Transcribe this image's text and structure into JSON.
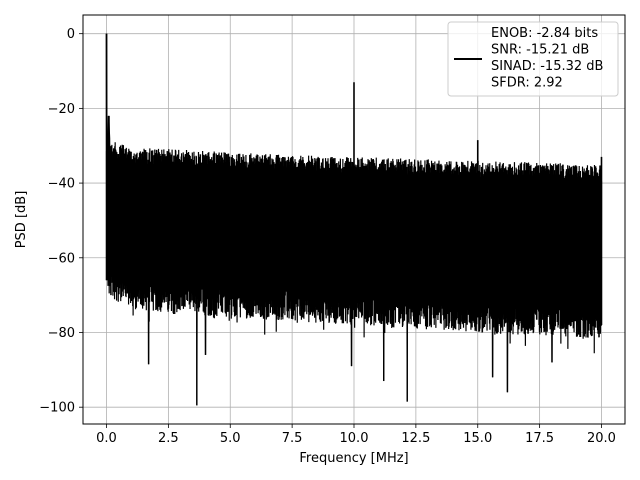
{
  "chart_data": {
    "type": "line",
    "title": "",
    "xlabel": "Frequency [MHz]",
    "ylabel": "PSD [dB]",
    "xlim": [
      -0.95,
      20.95
    ],
    "ylim": [
      -104.5,
      5.0
    ],
    "xticks": [
      0.0,
      2.5,
      5.0,
      7.5,
      10.0,
      12.5,
      15.0,
      17.5,
      20.0
    ],
    "xtick_labels": [
      "0.0",
      "2.5",
      "5.0",
      "7.5",
      "10.0",
      "12.5",
      "15.0",
      "17.5",
      "20.0"
    ],
    "yticks": [
      0,
      -20,
      -40,
      -60,
      -80,
      -100
    ],
    "ytick_labels": [
      "0",
      "−20",
      "−40",
      "−60",
      "−80",
      "−100"
    ],
    "grid": true,
    "legend_position": "upper-right",
    "line_color": "#000000",
    "legend_entries": [
      "ENOB: -2.84 bits",
      "SNR: -15.21 dB",
      "SINAD: -15.32 dB",
      "SFDR: 2.92"
    ],
    "series": [
      {
        "noise_floor_top": [
          [
            0.1,
            -28.5
          ],
          [
            1.0,
            -30.5
          ],
          [
            3.0,
            -31.0
          ],
          [
            5.0,
            -31.8
          ],
          [
            7.5,
            -32.5
          ],
          [
            10.0,
            -33.0
          ],
          [
            12.5,
            -33.5
          ],
          [
            15.0,
            -34.0
          ],
          [
            17.5,
            -34.5
          ],
          [
            20.0,
            -35.0
          ]
        ],
        "noise_floor_bottom": [
          [
            0.0,
            -66.0
          ],
          [
            1.0,
            -70.0
          ],
          [
            2.5,
            -71.0
          ],
          [
            5.0,
            -72.0
          ],
          [
            7.5,
            -73.0
          ],
          [
            10.0,
            -74.0
          ],
          [
            12.5,
            -75.0
          ],
          [
            15.0,
            -76.0
          ],
          [
            17.5,
            -77.0
          ],
          [
            20.0,
            -78.0
          ]
        ],
        "peaks": [
          {
            "x": 0.0,
            "y": 0.0
          },
          {
            "x": 0.1,
            "y": -22.0
          },
          {
            "x": 10.0,
            "y": -13.0
          },
          {
            "x": 15.0,
            "y": -28.5
          },
          {
            "x": 20.0,
            "y": -33.0
          }
        ],
        "dips": [
          {
            "x": 3.65,
            "y": -99.5
          },
          {
            "x": 12.15,
            "y": -98.5
          },
          {
            "x": 16.2,
            "y": -96.0
          },
          {
            "x": 11.2,
            "y": -93.0
          },
          {
            "x": 15.6,
            "y": -92.0
          },
          {
            "x": 1.7,
            "y": -88.5
          },
          {
            "x": 9.9,
            "y": -89.0
          },
          {
            "x": 4.0,
            "y": -86.0
          },
          {
            "x": 18.0,
            "y": -88.0
          }
        ]
      }
    ]
  }
}
